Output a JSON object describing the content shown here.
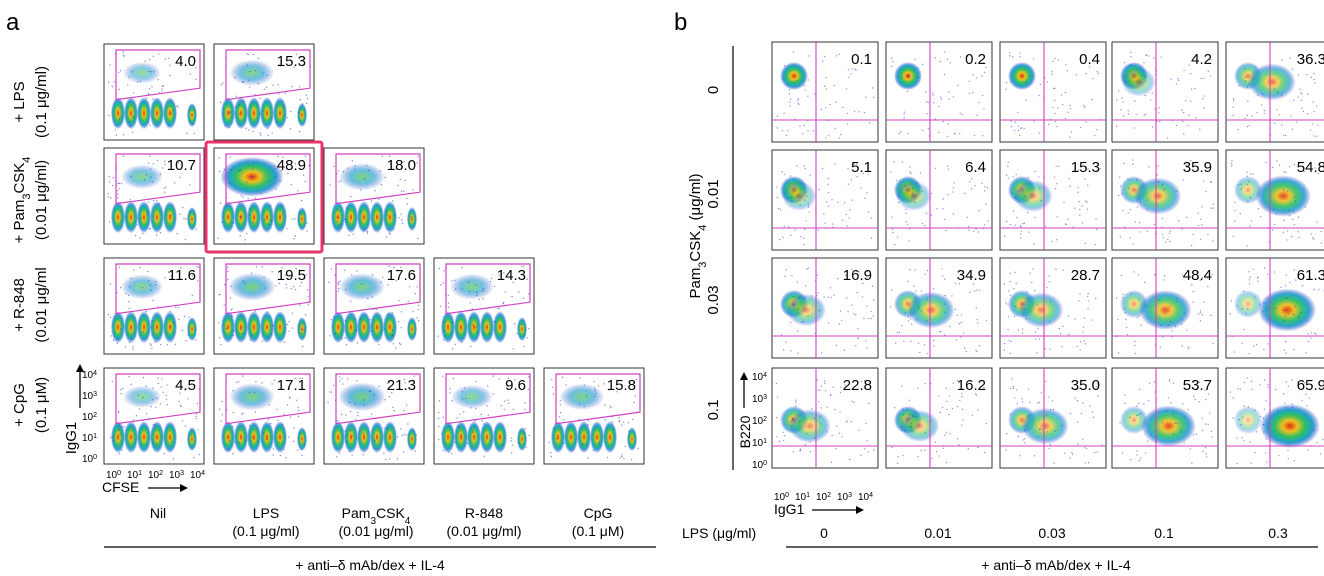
{
  "panel_a": {
    "label": "a",
    "row_labels": [
      {
        "name": "+ LPS",
        "conc": "(0.1 μg/ml)"
      },
      {
        "name": "+ Pam",
        "sub": "3",
        "mid": "CSK",
        "sub2": "4",
        "conc": "(0.01 μg/ml)"
      },
      {
        "name": "+ R-848",
        "conc": "(0.01 μg/ml"
      },
      {
        "name": "+ CpG",
        "conc": "(0.1 μM)"
      }
    ],
    "col_labels": [
      {
        "line1": "Nil",
        "line2": ""
      },
      {
        "line1": "LPS",
        "line2": "(0.1 μg/ml)"
      },
      {
        "line1": "Pam",
        "sub": "3",
        "mid": "CSK",
        "sub2": "4",
        "line2": "(0.01 μg/ml)"
      },
      {
        "line1": "R-848",
        "line2": "(0.01 μg/ml)"
      },
      {
        "line1": "CpG",
        "line2": "(0.1 μM)"
      }
    ],
    "values": [
      [
        "4.0",
        "15.3"
      ],
      [
        "10.7",
        "48.9",
        "18.0"
      ],
      [
        "11.6",
        "19.5",
        "17.6",
        "14.3"
      ],
      [
        "4.5",
        "17.1",
        "21.3",
        "9.6",
        "15.8"
      ]
    ],
    "highlight": {
      "row": 1,
      "col": 1,
      "color": "#e8346a"
    },
    "y_axis": "IgG1",
    "x_axis": "CFSE",
    "ticks": [
      "10",
      "0",
      "10",
      "1",
      "10",
      "2",
      "10",
      "3",
      "10",
      "4"
    ],
    "footer": "+ anti–δ mAb/dex + IL-4"
  },
  "panel_b": {
    "label": "b",
    "y_title": "Pam",
    "y_title_sub": "3",
    "y_title_mid": "CSK",
    "y_title_sub2": "4",
    "y_title_unit": " (μg/ml)",
    "row_labels": [
      "0",
      "0.01",
      "0.03",
      "0.1"
    ],
    "col_labels": [
      "0",
      "0.01",
      "0.03",
      "0.1",
      "0.3"
    ],
    "x_title": "LPS (μg/ml)",
    "values": [
      [
        "0.1",
        "0.2",
        "0.4",
        "4.2",
        "36.3"
      ],
      [
        "5.1",
        "6.4",
        "15.3",
        "35.9",
        "54.8"
      ],
      [
        "16.9",
        "34.9",
        "28.7",
        "48.4",
        "61.3"
      ],
      [
        "22.8",
        "16.2",
        "35.0",
        "53.7",
        "65.9"
      ]
    ],
    "y_axis": "B220",
    "x_axis": "IgG1",
    "footer": "+ anti–δ mAb/dex + IL-4"
  },
  "colors": {
    "gate": "#d040c0",
    "highlight": "#e8346a",
    "dot_low": "#2030c0",
    "dot_high": "#e03010"
  }
}
